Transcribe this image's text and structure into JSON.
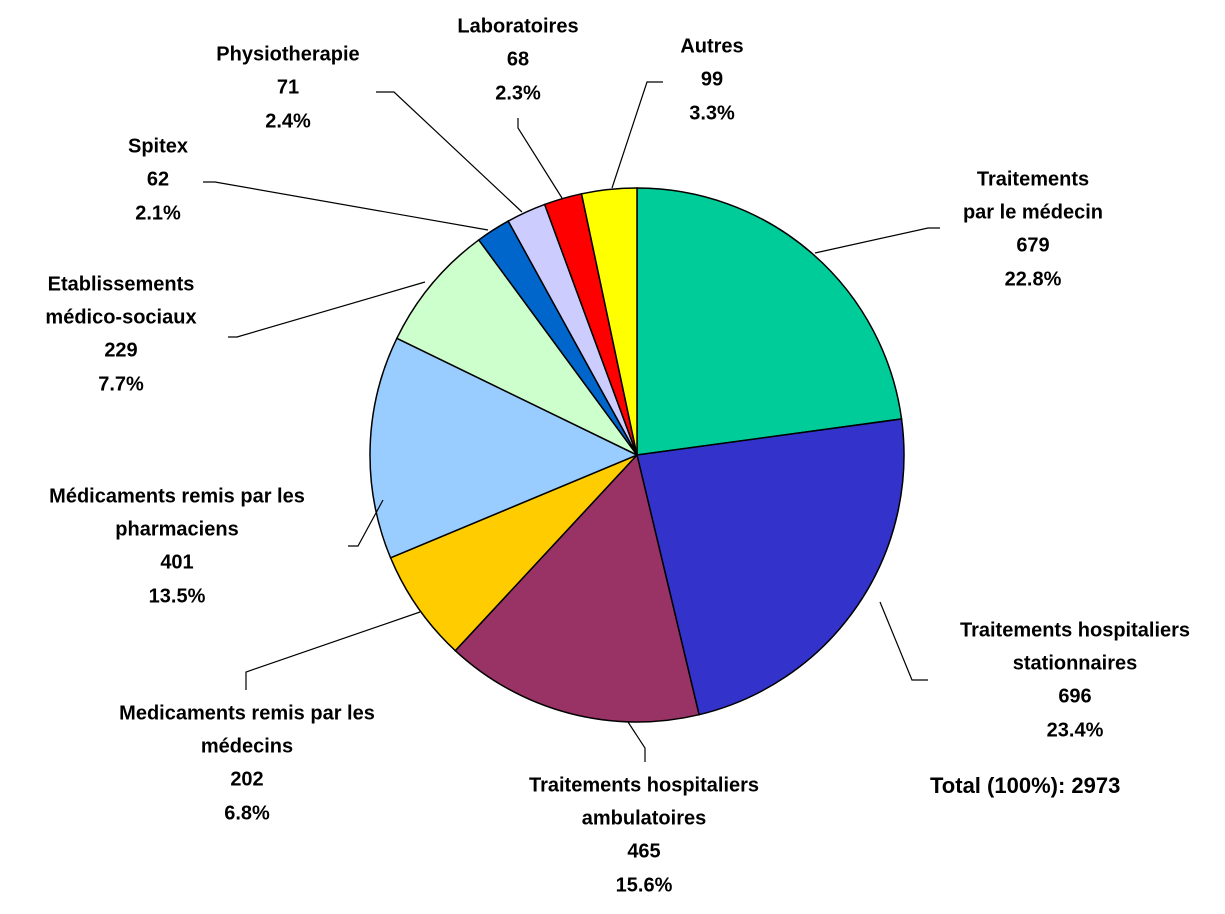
{
  "chart_data": {
    "type": "pie",
    "categories": [
      [
        "Traitements",
        "par le médecin"
      ],
      [
        "Traitements hospitaliers",
        "stationnaires"
      ],
      [
        "Traitements hospitaliers",
        "ambulatoires"
      ],
      [
        "Medicaments remis par les",
        "médecins"
      ],
      [
        "Médicaments remis par les",
        "pharmaciens"
      ],
      [
        "Etablissements",
        "médico-sociaux"
      ],
      [
        "Spitex"
      ],
      [
        "Physiotherapie"
      ],
      [
        "Laboratoires"
      ],
      [
        "Autres"
      ]
    ],
    "values": [
      679,
      696,
      465,
      202,
      401,
      229,
      62,
      71,
      68,
      99
    ],
    "percent_labels": [
      "22.8%",
      "23.4%",
      "15.6%",
      "6.8%",
      "13.5%",
      "7.7%",
      "2.1%",
      "2.4%",
      "2.3%",
      "3.3%"
    ],
    "colors": [
      "#00CC99",
      "#3333CC",
      "#993366",
      "#FFCC00",
      "#99CCFF",
      "#CCFFCC",
      "#0066CC",
      "#CCCCFF",
      "#FF0000",
      "#FFFF00"
    ],
    "annotation": "Total (100%): 2973"
  }
}
